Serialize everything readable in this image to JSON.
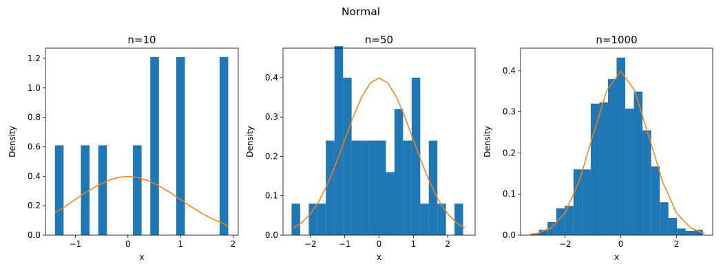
{
  "figure": {
    "suptitle": "Normal"
  },
  "chart_data": [
    {
      "type": "bar",
      "title": "n=10",
      "xlabel": "x",
      "ylabel": "Density",
      "xlim": [
        -1.57,
        2.1
      ],
      "ylim": [
        0,
        1.27
      ],
      "xticks": [
        -1,
        0,
        1,
        2
      ],
      "yticks": [
        0.0,
        0.2,
        0.4,
        0.6,
        0.8,
        1.0,
        1.2
      ],
      "bin_edges": [
        -1.39,
        -1.225,
        -1.06,
        -0.895,
        -0.73,
        -0.565,
        -0.4,
        -0.235,
        -0.07,
        0.095,
        0.26,
        0.425,
        0.59,
        0.755,
        0.92,
        1.085,
        1.25,
        1.415,
        1.58,
        1.745,
        1.91
      ],
      "density": [
        0.61,
        0,
        0,
        0.61,
        0,
        0.61,
        0,
        0,
        0,
        0.61,
        0,
        1.21,
        0,
        0,
        1.21,
        0,
        0,
        0,
        0,
        1.21
      ],
      "curve_x": [
        -1.39,
        -1.2,
        -1.0,
        -0.8,
        -0.6,
        -0.4,
        -0.2,
        0.0,
        0.2,
        0.4,
        0.6,
        0.8,
        1.0,
        1.2,
        1.4,
        1.6,
        1.91
      ],
      "curve_y": [
        0.152,
        0.194,
        0.242,
        0.29,
        0.333,
        0.368,
        0.391,
        0.399,
        0.391,
        0.368,
        0.333,
        0.29,
        0.242,
        0.194,
        0.15,
        0.111,
        0.064
      ]
    },
    {
      "type": "bar",
      "title": "n=50",
      "xlabel": "x",
      "ylabel": "Density",
      "xlim": [
        -2.8,
        2.8
      ],
      "ylim": [
        0,
        0.475
      ],
      "xticks": [
        -2,
        -1,
        0,
        1,
        2
      ],
      "yticks": [
        0.0,
        0.1,
        0.2,
        0.3,
        0.4
      ],
      "bin_edges": [
        -2.55,
        -2.3,
        -2.05,
        -1.8,
        -1.55,
        -1.3,
        -1.05,
        -0.8,
        -0.55,
        -0.3,
        -0.05,
        0.2,
        0.45,
        0.7,
        0.95,
        1.2,
        1.45,
        1.7,
        1.95,
        2.2,
        2.45
      ],
      "density": [
        0.08,
        0,
        0.08,
        0.08,
        0.24,
        0.48,
        0.4,
        0.24,
        0.24,
        0.24,
        0.24,
        0.16,
        0.32,
        0.24,
        0.4,
        0.08,
        0.24,
        0.08,
        0,
        0.08
      ],
      "curve_x": [
        -2.5,
        -2.25,
        -2.0,
        -1.75,
        -1.5,
        -1.25,
        -1.0,
        -0.75,
        -0.5,
        -0.25,
        0.0,
        0.25,
        0.5,
        0.75,
        1.0,
        1.25,
        1.5,
        1.75,
        2.0,
        2.25,
        2.5
      ],
      "curve_y": [
        0.018,
        0.032,
        0.054,
        0.086,
        0.13,
        0.183,
        0.242,
        0.301,
        0.352,
        0.387,
        0.399,
        0.387,
        0.352,
        0.301,
        0.242,
        0.183,
        0.13,
        0.086,
        0.054,
        0.032,
        0.018
      ]
    },
    {
      "type": "bar",
      "title": "n=1000",
      "xlabel": "x",
      "ylabel": "Density",
      "xlim": [
        -3.6,
        3.3
      ],
      "ylim": [
        0,
        0.455
      ],
      "xticks": [
        -2,
        0,
        2
      ],
      "yticks": [
        0.0,
        0.1,
        0.2,
        0.3,
        0.4
      ],
      "bin_edges": [
        -3.25,
        -2.94,
        -2.63,
        -2.32,
        -2.01,
        -1.7,
        -1.39,
        -1.08,
        -0.77,
        -0.46,
        -0.15,
        0.16,
        0.47,
        0.78,
        1.09,
        1.4,
        1.71,
        2.02,
        2.33,
        2.64,
        2.95
      ],
      "density": [
        0.003,
        0.013,
        0.032,
        0.065,
        0.071,
        0.16,
        0.16,
        0.32,
        0.323,
        0.38,
        0.432,
        0.308,
        0.349,
        0.255,
        0.167,
        0.08,
        0.042,
        0.016,
        0.01,
        0.013
      ],
      "curve_x": [
        -3.25,
        -3.0,
        -2.5,
        -2.0,
        -1.5,
        -1.0,
        -0.5,
        0.0,
        0.5,
        1.0,
        1.5,
        2.0,
        2.5,
        3.0
      ],
      "curve_y": [
        0.002,
        0.004,
        0.018,
        0.054,
        0.13,
        0.242,
        0.352,
        0.399,
        0.352,
        0.242,
        0.13,
        0.054,
        0.018,
        0.004
      ]
    }
  ],
  "colors": {
    "bar": "#1f77b4",
    "curve": "#ff7f0e",
    "axis": "#000000"
  }
}
